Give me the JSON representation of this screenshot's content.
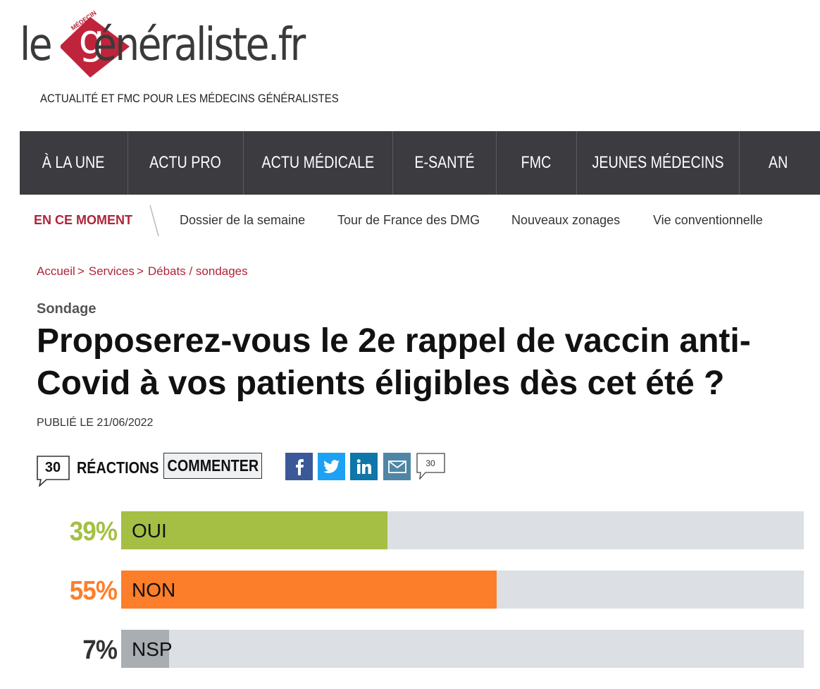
{
  "brand": {
    "logo_left": "le",
    "logo_right": "énéraliste.fr",
    "logo_badge": "MÉDECIN",
    "tagline": "ACTUALITÉ ET FMC POUR LES MÉDECINS GÉNÉRALISTES",
    "red": "#c0243a"
  },
  "nav": {
    "items": [
      {
        "label": "À LA UNE"
      },
      {
        "label": "ACTU PRO"
      },
      {
        "label": "ACTU MÉDICALE"
      },
      {
        "label": "E-SANTÉ"
      },
      {
        "label": "FMC"
      },
      {
        "label": "JEUNES MÉDECINS"
      },
      {
        "label": "AN"
      }
    ]
  },
  "subnav": {
    "label": "EN CE MOMENT",
    "links": [
      {
        "label": "Dossier de la semaine"
      },
      {
        "label": "Tour de France des DMG"
      },
      {
        "label": "Nouveaux zonages"
      },
      {
        "label": "Vie conventionnelle"
      }
    ]
  },
  "breadcrumb": {
    "items": [
      {
        "label": "Accueil",
        "sep": ">"
      },
      {
        "label": "Services",
        "sep": ">"
      },
      {
        "label": "Débats / sondages",
        "sep": ""
      }
    ]
  },
  "article": {
    "kicker": "Sondage",
    "title": "Proposerez-vous le 2e rappel de vaccin anti-Covid à vos patients éligibles dès cet été ?",
    "date": "PUBLIÉ LE 21/06/2022"
  },
  "reactions": {
    "count": "30",
    "label": "RÉACTIONS",
    "comment_label": "COMMENTER",
    "mini_count": "30",
    "share_icons": [
      "facebook-icon",
      "twitter-icon",
      "linkedin-icon",
      "mail-icon"
    ]
  },
  "poll": {
    "rows": [
      {
        "pct_label": "39%",
        "value": 39,
        "label": "OUI",
        "color": "#a4bf44",
        "pct_color": "#a4bf44"
      },
      {
        "pct_label": "55%",
        "value": 55,
        "label": "NON",
        "color": "#fd7e2a",
        "pct_color": "#fd7e2a"
      },
      {
        "pct_label": "7%",
        "value": 7,
        "label": "NSP",
        "color": "#a9aeb3",
        "pct_color": "#333333"
      }
    ]
  }
}
